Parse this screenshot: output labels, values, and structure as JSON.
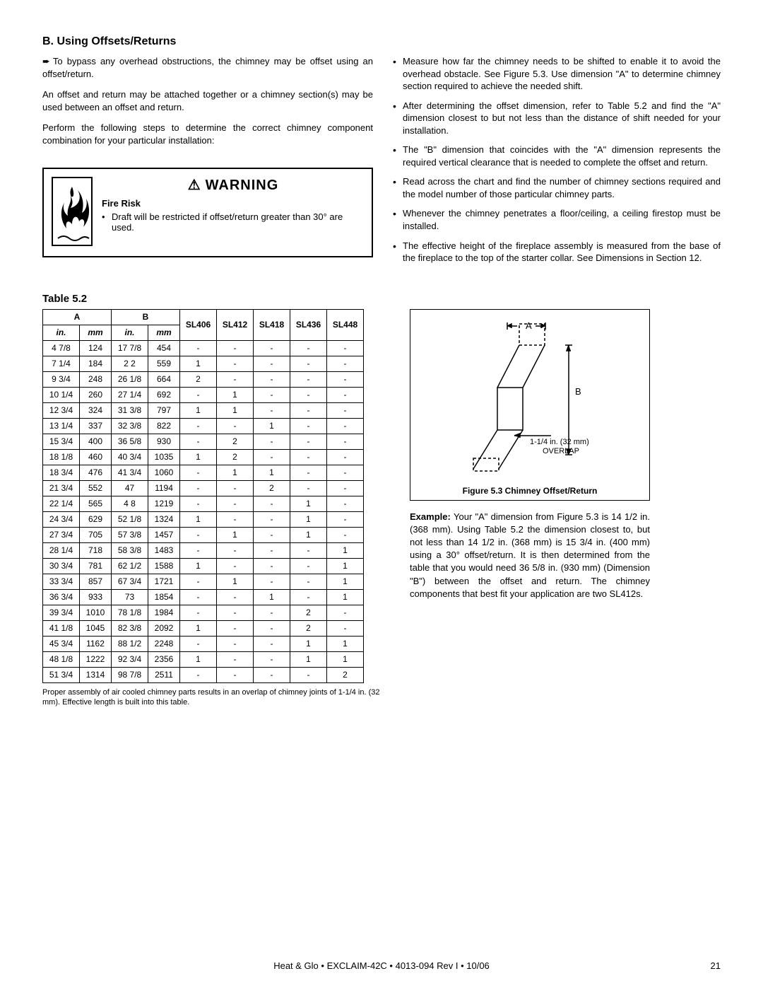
{
  "section_title": "B. Using Offsets/Returns",
  "intro_para_1": "To bypass any overhead obstructions, the chimney may be offset using an offset/return.",
  "intro_para_2": "An offset and return may be attached together or a chimney section(s) may be used between an offset and return.",
  "intro_para_3": "Perform the following steps to determine the correct chimney component combination for your particular installation:",
  "right_bullets": [
    "Measure how far the chimney needs to be shifted to enable it to avoid the overhead obstacle. See Figure 5.3. Use dimension \"A\" to determine chimney section required to achieve the needed shift.",
    "After determining the offset dimension, refer to Table 5.2 and find the \"A\" dimension closest to but not less than the distance of shift needed for your installation.",
    "The \"B\" dimension that coincides with the \"A\" dimension represents the required vertical clearance that is needed to complete the offset and return.",
    "Read across the chart and find the number of chimney sections required and the model number of those particular chimney parts.",
    "Whenever the chimney penetrates a floor/ceiling, a ceiling firestop must be installed.",
    "The effective height of the fireplace assembly is measured from the base of the fireplace to the top of the starter collar. See Dimensions in Section 12."
  ],
  "warning": {
    "title": "WARNING",
    "sub": "Fire Risk",
    "body": "Draft will be restricted if offset/return greater than 30° are used."
  },
  "table_label": "Table 5.2",
  "table": {
    "group_headers": [
      "A",
      "B",
      "",
      "",
      "",
      "",
      ""
    ],
    "sub_headers": [
      "in.",
      "mm",
      "in.",
      "mm",
      "SL406",
      "SL412",
      "SL418",
      "SL436",
      "SL448"
    ],
    "rows": [
      [
        "4 7/8",
        "124",
        "17 7/8",
        "454",
        "-",
        "-",
        "-",
        "-",
        "-"
      ],
      [
        "7 1/4",
        "184",
        "2 2",
        "559",
        "1",
        "-",
        "-",
        "-",
        "-"
      ],
      [
        "9 3/4",
        "248",
        "26 1/8",
        "664",
        "2",
        "-",
        "-",
        "-",
        "-"
      ],
      [
        "10 1/4",
        "260",
        "27 1/4",
        "692",
        "-",
        "1",
        "-",
        "-",
        "-"
      ],
      [
        "12 3/4",
        "324",
        "31 3/8",
        "797",
        "1",
        "1",
        "-",
        "-",
        "-"
      ],
      [
        "13 1/4",
        "337",
        "32 3/8",
        "822",
        "-",
        "-",
        "1",
        "-",
        "-"
      ],
      [
        "15 3/4",
        "400",
        "36 5/8",
        "930",
        "-",
        "2",
        "-",
        "-",
        "-"
      ],
      [
        "18 1/8",
        "460",
        "40 3/4",
        "1035",
        "1",
        "2",
        "-",
        "-",
        "-"
      ],
      [
        "18 3/4",
        "476",
        "41 3/4",
        "1060",
        "-",
        "1",
        "1",
        "-",
        "-"
      ],
      [
        "21 3/4",
        "552",
        "47",
        "1194",
        "-",
        "-",
        "2",
        "-",
        "-"
      ],
      [
        "22 1/4",
        "565",
        "4 8",
        "1219",
        "-",
        "-",
        "-",
        "1",
        "-"
      ],
      [
        "24 3/4",
        "629",
        "52 1/8",
        "1324",
        "1",
        "-",
        "-",
        "1",
        "-"
      ],
      [
        "27 3/4",
        "705",
        "57 3/8",
        "1457",
        "-",
        "1",
        "-",
        "1",
        "-"
      ],
      [
        "28 1/4",
        "718",
        "58 3/8",
        "1483",
        "-",
        "-",
        "-",
        "-",
        "1"
      ],
      [
        "30 3/4",
        "781",
        "62 1/2",
        "1588",
        "1",
        "-",
        "-",
        "-",
        "1"
      ],
      [
        "33 3/4",
        "857",
        "67 3/4",
        "1721",
        "-",
        "1",
        "-",
        "-",
        "1"
      ],
      [
        "36 3/4",
        "933",
        "73",
        "1854",
        "-",
        "-",
        "1",
        "-",
        "1"
      ],
      [
        "39 3/4",
        "1010",
        "78 1/8",
        "1984",
        "-",
        "-",
        "-",
        "2",
        "-"
      ],
      [
        "41 1/8",
        "1045",
        "82 3/8",
        "2092",
        "1",
        "-",
        "-",
        "2",
        "-"
      ],
      [
        "45 3/4",
        "1162",
        "88 1/2",
        "2248",
        "-",
        "-",
        "-",
        "1",
        "1"
      ],
      [
        "48 1/8",
        "1222",
        "92 3/4",
        "2356",
        "1",
        "-",
        "-",
        "1",
        "1"
      ],
      [
        "51 3/4",
        "1314",
        "98 7/8",
        "2511",
        "-",
        "-",
        "-",
        "-",
        "2"
      ]
    ],
    "note": "Proper assembly of air cooled chimney parts results in an overlap of chimney joints of 1-1/4 in. (32 mm). Effective length is built into this table."
  },
  "figure": {
    "label_a": "A",
    "label_b": "B",
    "overlap": "1-1/4 in. (32 mm) OVERLAP",
    "caption": "Figure 5.3   Chimney Offset/Return"
  },
  "example_label": "Example: ",
  "example_text": "Your \"A\" dimension from Figure 5.3 is 14 1/2 in. (368 mm). Using Table 5.2 the dimension closest to, but not less than 14 1/2 in. (368 mm) is 15 3/4 in. (400 mm) using a 30° offset/return. It is then determined from the table that you would need 36 5/8 in. (930 mm) (Dimension \"B\") between the offset and return. The chimney components that best fit your application are two SL412s.",
  "footer": "Heat & Glo • EXCLAIM-42C • 4013-094 Rev I • 10/06",
  "page": "21"
}
